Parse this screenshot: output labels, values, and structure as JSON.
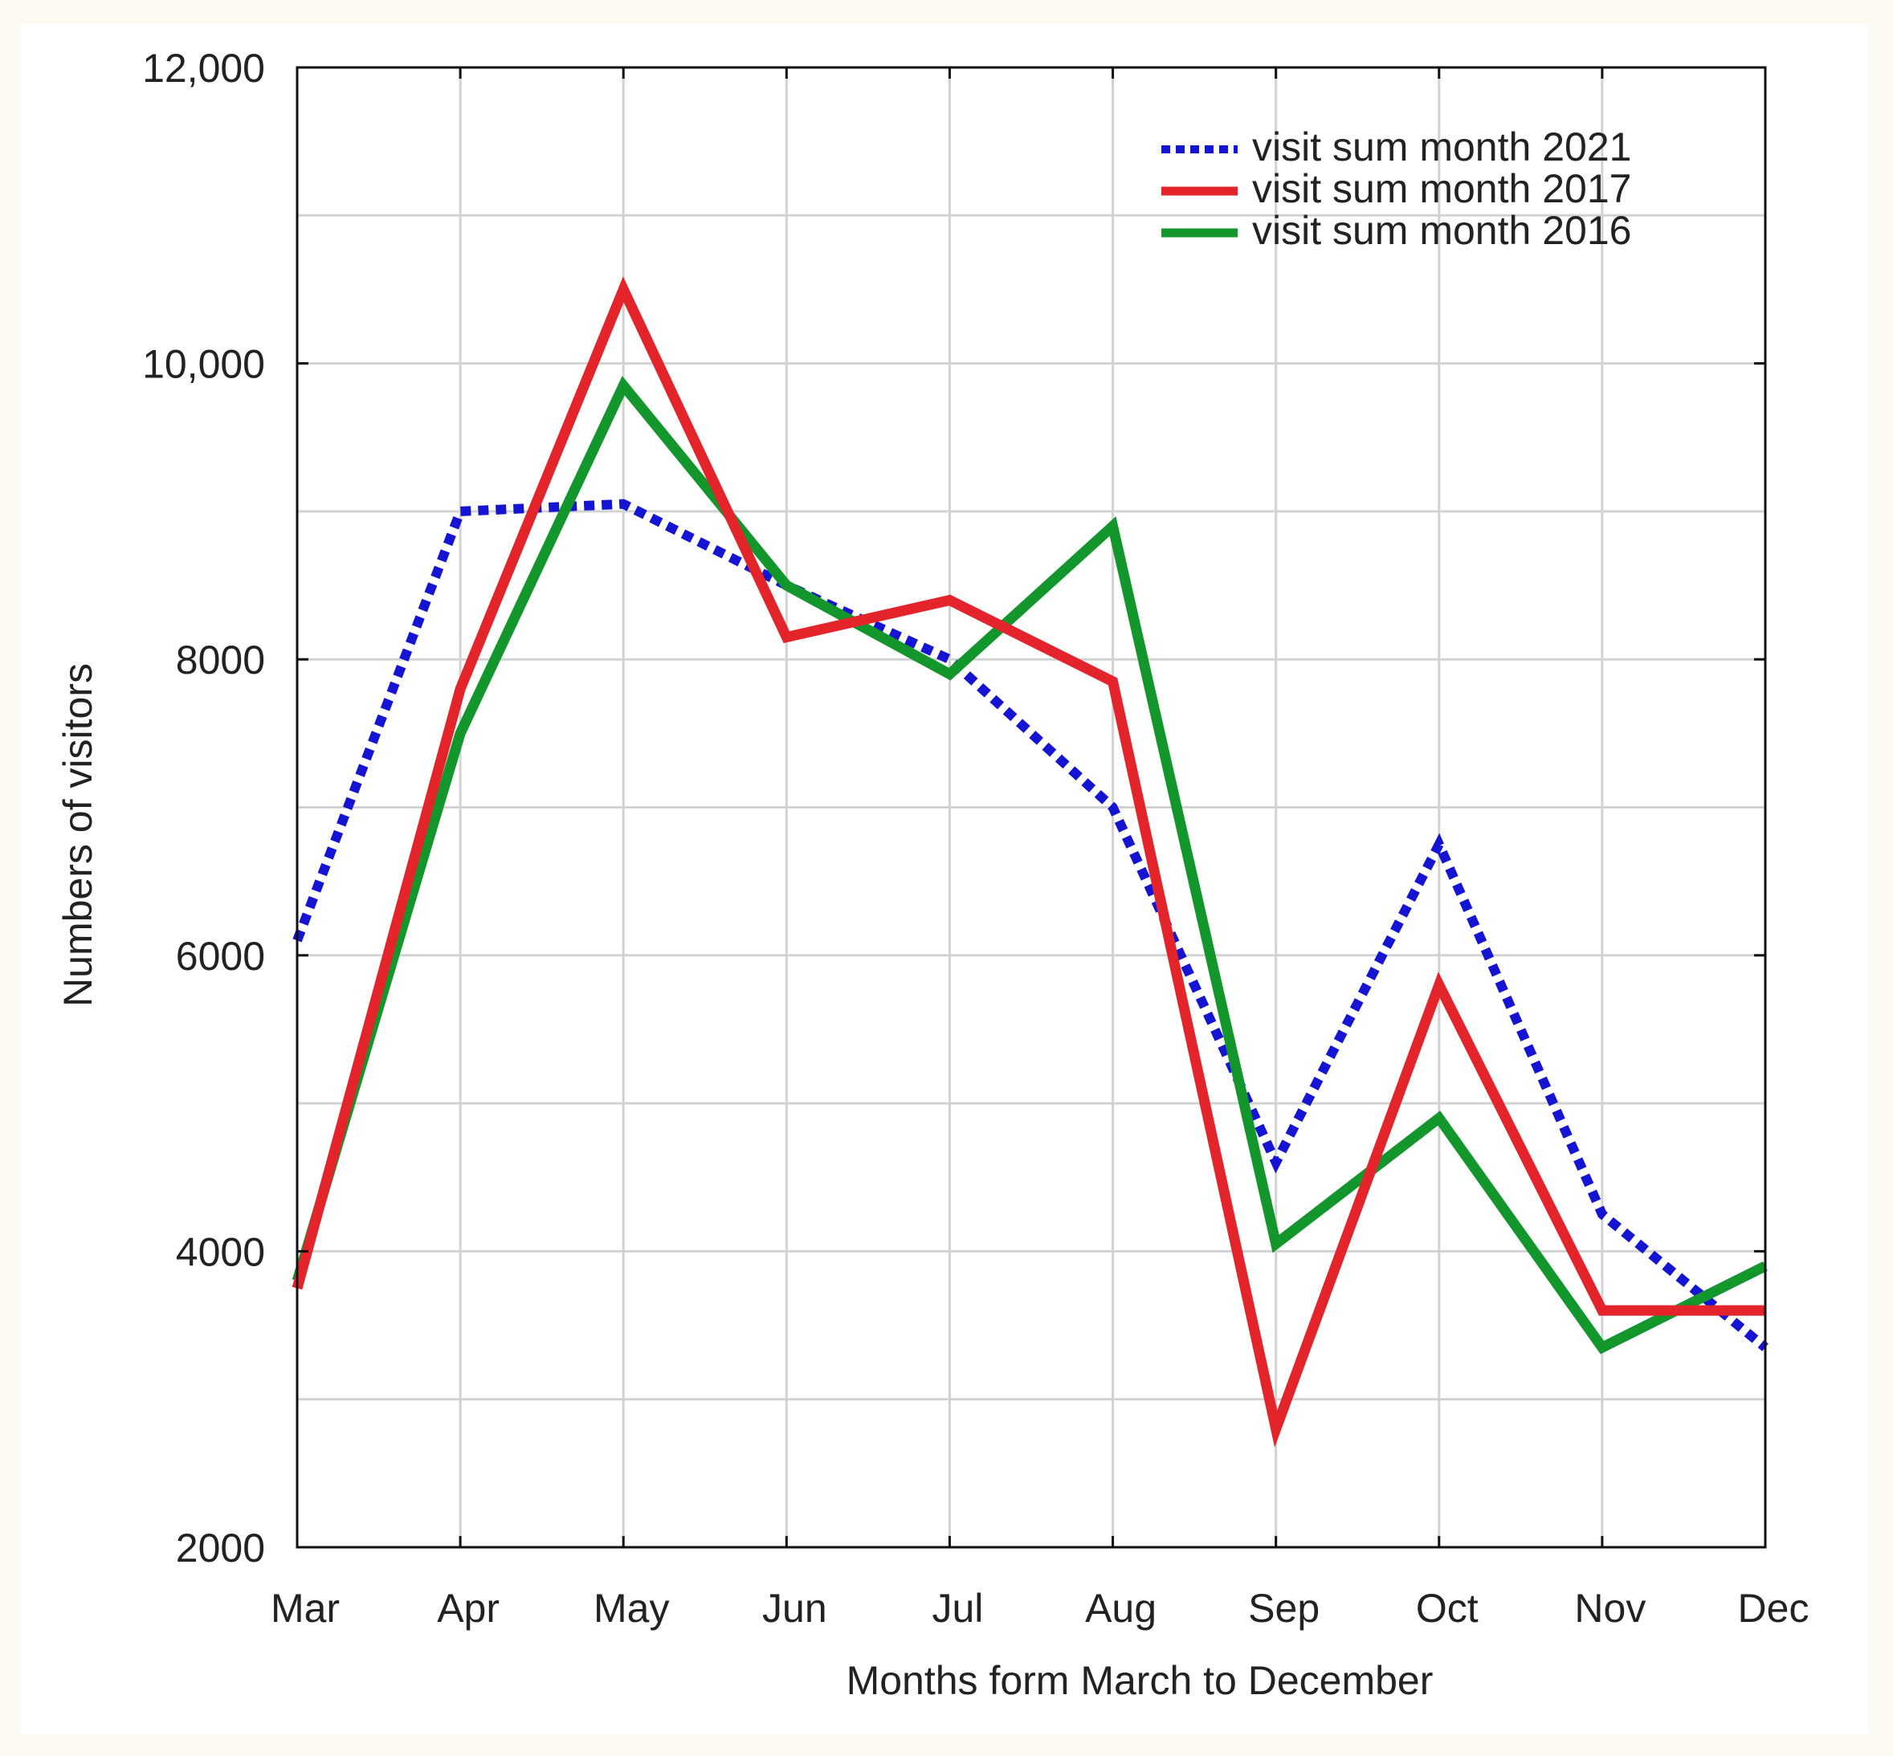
{
  "chart_data": {
    "type": "line",
    "title": "",
    "xlabel": "Months form March to December",
    "ylabel": "Numbers of visitors",
    "categories": [
      "Mar",
      "Apr",
      "May",
      "Jun",
      "Jul",
      "Aug",
      "Sep",
      "Oct",
      "Nov",
      "Dec"
    ],
    "ylim": [
      2000,
      12000
    ],
    "yticks": [
      2000,
      4000,
      6000,
      8000,
      10000,
      12000
    ],
    "ytick_labels": [
      "2000",
      "4000",
      "6000",
      "8000",
      "10,000",
      "12,000"
    ],
    "grid": true,
    "legend_position": "top-right",
    "series": [
      {
        "name": "visit sum month 2021",
        "color": "#1414d2",
        "style": "dotted",
        "values": [
          6100,
          9000,
          9050,
          8500,
          8000,
          7000,
          4600,
          6750,
          4250,
          3350
        ]
      },
      {
        "name": "visit sum month 2017",
        "color": "#e3242b",
        "style": "solid",
        "values": [
          3750,
          7800,
          10500,
          8150,
          8400,
          7850,
          2800,
          5800,
          3600,
          3600
        ]
      },
      {
        "name": "visit sum month 2016",
        "color": "#13962c",
        "style": "solid",
        "values": [
          3800,
          7500,
          9850,
          8500,
          7900,
          8900,
          4050,
          4900,
          3350,
          3900
        ]
      }
    ]
  }
}
